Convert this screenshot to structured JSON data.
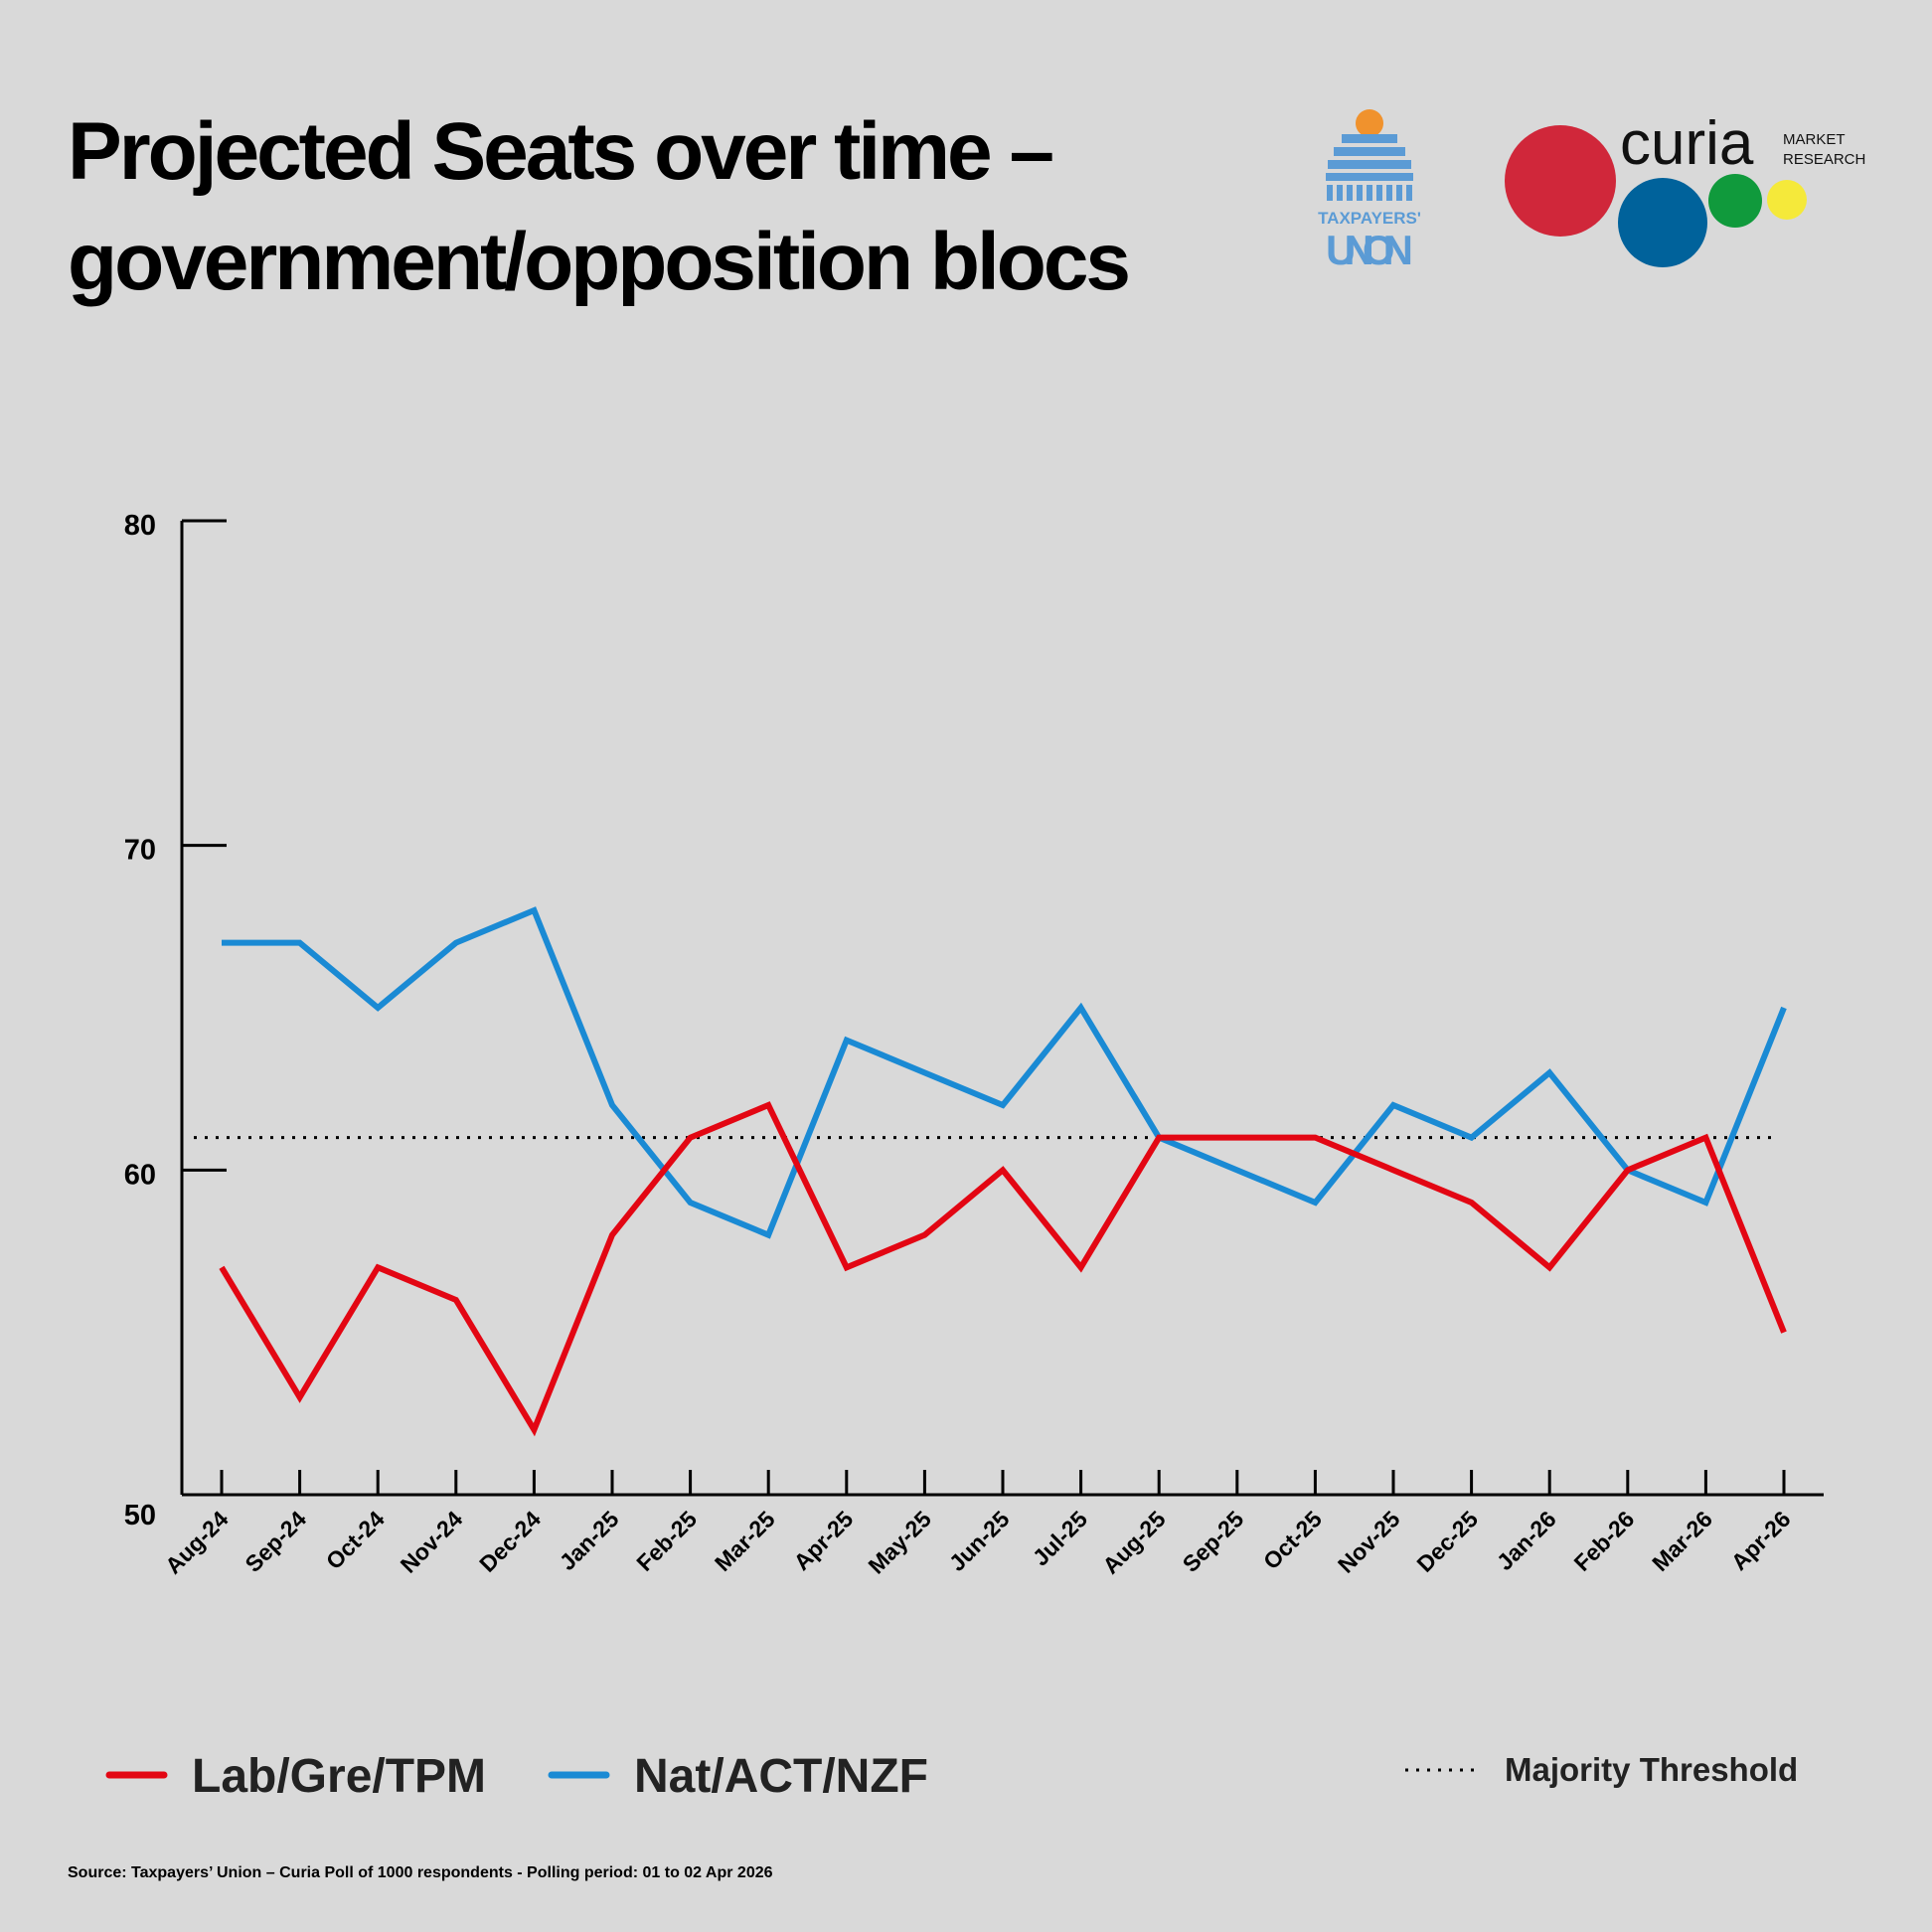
{
  "chart_data": {
    "type": "line",
    "title": "Projected Seats over time –",
    "title_line2": "government/opposition blocs",
    "categories": [
      "Aug-24",
      "Sep-24",
      "Oct-24",
      "Nov-24",
      "Dec-24",
      "Jan-25",
      "Feb-25",
      "Mar-25",
      "Apr-25",
      "May-25",
      "Jun-25",
      "Jul-25",
      "Aug-25",
      "Sep-25",
      "Oct-25",
      "Nov-25",
      "Dec-25",
      "Jan-26",
      "Feb-26",
      "Mar-26",
      "Apr-26"
    ],
    "series": [
      {
        "name": "Lab/Gre/TPM",
        "color": "#e30613",
        "values": [
          57,
          53,
          57,
          56,
          52,
          58,
          61,
          62,
          57,
          58,
          60,
          57,
          61,
          61,
          61,
          60,
          59,
          57,
          60,
          61,
          55
        ]
      },
      {
        "name": "Nat/ACT/NZF",
        "color": "#1a8ad4",
        "values": [
          67,
          67,
          65,
          67,
          68,
          62,
          59,
          58,
          64,
          63,
          62,
          65,
          61,
          60,
          59,
          62,
          61,
          63,
          60,
          59,
          65
        ]
      }
    ],
    "reference_line": {
      "name": "Majority Threshold",
      "value": 61,
      "style": "dotted"
    },
    "ylim": [
      50,
      80
    ],
    "yticks": [
      50,
      60,
      70,
      80
    ],
    "grid": false,
    "legend_placement": "bottom",
    "source": "Source: Taxpayers’ Union – Curia Poll of 1000 respondents - Polling period: 01 to 02 Apr 2026"
  },
  "logos": {
    "taxpayers_union": {
      "line1": "TAXPAYERS'",
      "line2": "UNION",
      "color": "#5b9bd5"
    },
    "curia": {
      "name": "curia",
      "sub1": "MARKET",
      "sub2": "RESEARCH",
      "colors": [
        "#d0273a",
        "#00629b",
        "#109a3c",
        "#f5e93a"
      ]
    }
  }
}
